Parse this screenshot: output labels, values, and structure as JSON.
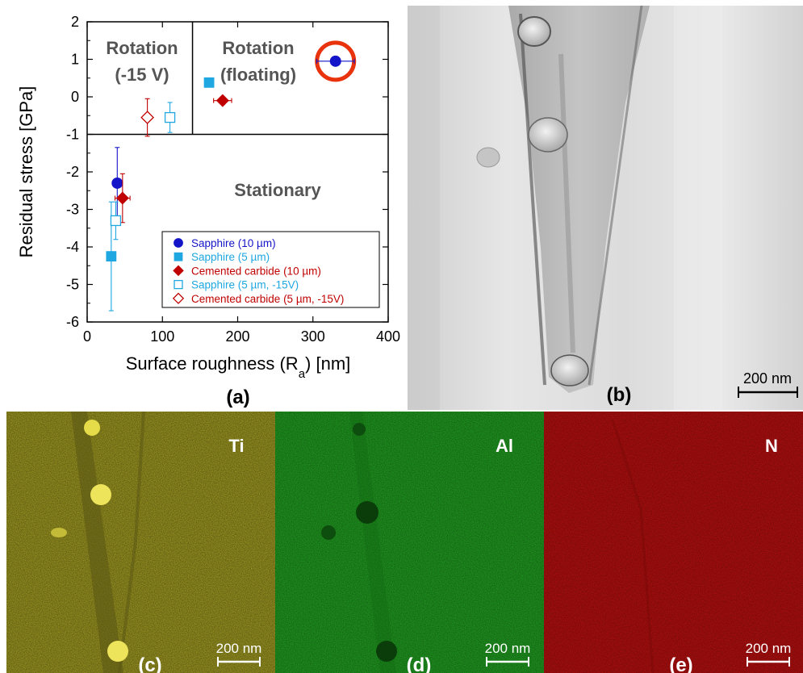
{
  "panel_labels": {
    "a": "(a)",
    "b": "(b)",
    "c": "(c)",
    "d": "(d)",
    "e": "(e)"
  },
  "element_labels": {
    "c": "Ti",
    "d": "Al",
    "e": "N"
  },
  "scale_bar_text": "200 nm",
  "colors": {
    "sapphire_10": "#1414c8",
    "sapphire_5": "#1ea7e1",
    "carbide": "#c00000",
    "highlight_ring": "#e8330d",
    "map_ti": "#c8c030",
    "map_al": "#22a822",
    "map_n": "#c01010"
  },
  "chart_data": {
    "type": "scatter",
    "xlabel": "Surface roughness (R",
    "xlabel_sub": "a",
    "xlabel_tail": ") [nm]",
    "ylabel": "Residual stress [GPa]",
    "xlim": [
      0,
      400
    ],
    "ylim": [
      -6,
      2
    ],
    "xticks": [
      "0",
      "100",
      "200",
      "300",
      "400"
    ],
    "yticks": [
      "-6",
      "-5",
      "-4",
      "-3",
      "-2",
      "-1",
      "0",
      "1",
      "2"
    ],
    "region_labels": {
      "rot_bias_1": "Rotation",
      "rot_bias_2": "(-15 V)",
      "rot_float_1": "Rotation",
      "rot_float_2": "(floating)",
      "stationary": "Stationary"
    },
    "series": [
      {
        "name": "Sapphire (10 µm)",
        "marker": "circle",
        "filled": true,
        "color": "#1414c8",
        "points": [
          {
            "x": 330,
            "y": 0.95,
            "xerr": 25,
            "yerr": 0
          },
          {
            "x": 40,
            "y": -2.3,
            "xerr": 0,
            "yerr": 0.95
          }
        ]
      },
      {
        "name": "Sapphire (5 µm)",
        "marker": "square",
        "filled": true,
        "color": "#1ea7e1",
        "points": [
          {
            "x": 162,
            "y": 0.38,
            "xerr": 0,
            "yerr": 0
          },
          {
            "x": 32,
            "y": -4.25,
            "xerr": 5,
            "yerr": 1.45
          }
        ]
      },
      {
        "name": "Cemented carbide (10 µm)",
        "marker": "diamond",
        "filled": true,
        "color": "#c00000",
        "points": [
          {
            "x": 180,
            "y": -0.1,
            "xerr": 12,
            "yerr": 0.1
          },
          {
            "x": 47,
            "y": -2.7,
            "xerr": 10,
            "yerr": 0.65
          }
        ]
      },
      {
        "name": "Sapphire (5 µm, -15V)",
        "marker": "square",
        "filled": false,
        "color": "#1ea7e1",
        "points": [
          {
            "x": 110,
            "y": -0.55,
            "xerr": 6,
            "yerr": 0.4
          },
          {
            "x": 38,
            "y": -3.3,
            "xerr": 4,
            "yerr": 0.5
          }
        ]
      },
      {
        "name": "Cemented carbide (5 µm, -15V)",
        "marker": "diamond",
        "filled": false,
        "color": "#c00000",
        "points": [
          {
            "x": 80,
            "y": -0.55,
            "xerr": 0,
            "yerr": 0.5
          }
        ]
      }
    ],
    "highlight": {
      "x": 330,
      "y": 0.95
    }
  }
}
